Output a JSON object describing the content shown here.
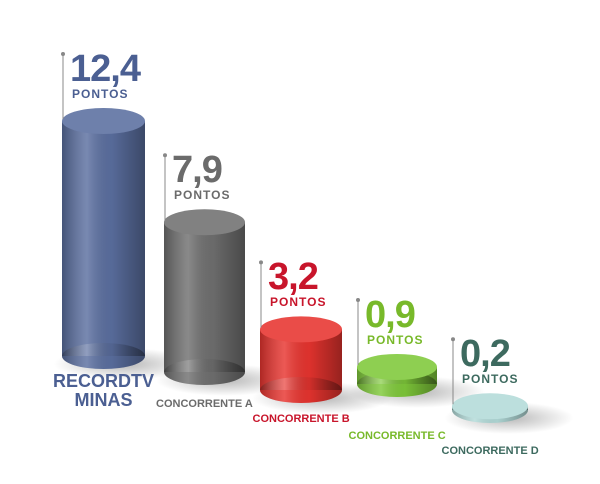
{
  "chart_data": {
    "type": "cylinder-bar",
    "categories": [
      "RECORDTV MINAS",
      "CONCORRENTE A",
      "CONCORRENTE B",
      "CONCORRENTE C",
      "CONCORRENTE D"
    ],
    "values": [
      12.4,
      7.9,
      3.2,
      0.9,
      0.2
    ],
    "value_labels": [
      "12,4",
      "7,9",
      "3,2",
      "0,9",
      "0,2"
    ],
    "unit_label": "PONTOS",
    "colors": [
      "#5b6fa0",
      "#707070",
      "#e8342f",
      "#7fc93a",
      "#b3dbd9"
    ],
    "label_colors": [
      "#4b5f92",
      "#6b6b6b",
      "#c8152b",
      "#78b92a",
      "#3d6a5f"
    ]
  }
}
